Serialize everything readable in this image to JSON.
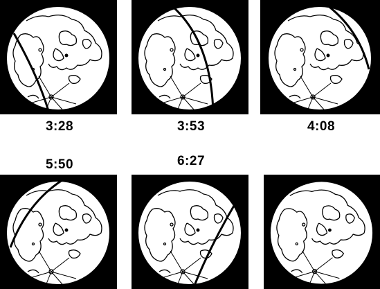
{
  "figure": {
    "panels": [
      {
        "time": "3:28",
        "shadow": "left-arc"
      },
      {
        "time": "3:53",
        "shadow": "center-arc"
      },
      {
        "time": "4:08",
        "shadow": "right-edge-arc"
      },
      {
        "time": "5:50",
        "shadow": "upper-left-arc"
      },
      {
        "time": "6:27",
        "shadow": "lower-right-arc"
      },
      {
        "time": "",
        "shadow": "none"
      }
    ],
    "colors": {
      "background": "#000000",
      "moon": "#ffffff",
      "lines": "#000000"
    }
  }
}
